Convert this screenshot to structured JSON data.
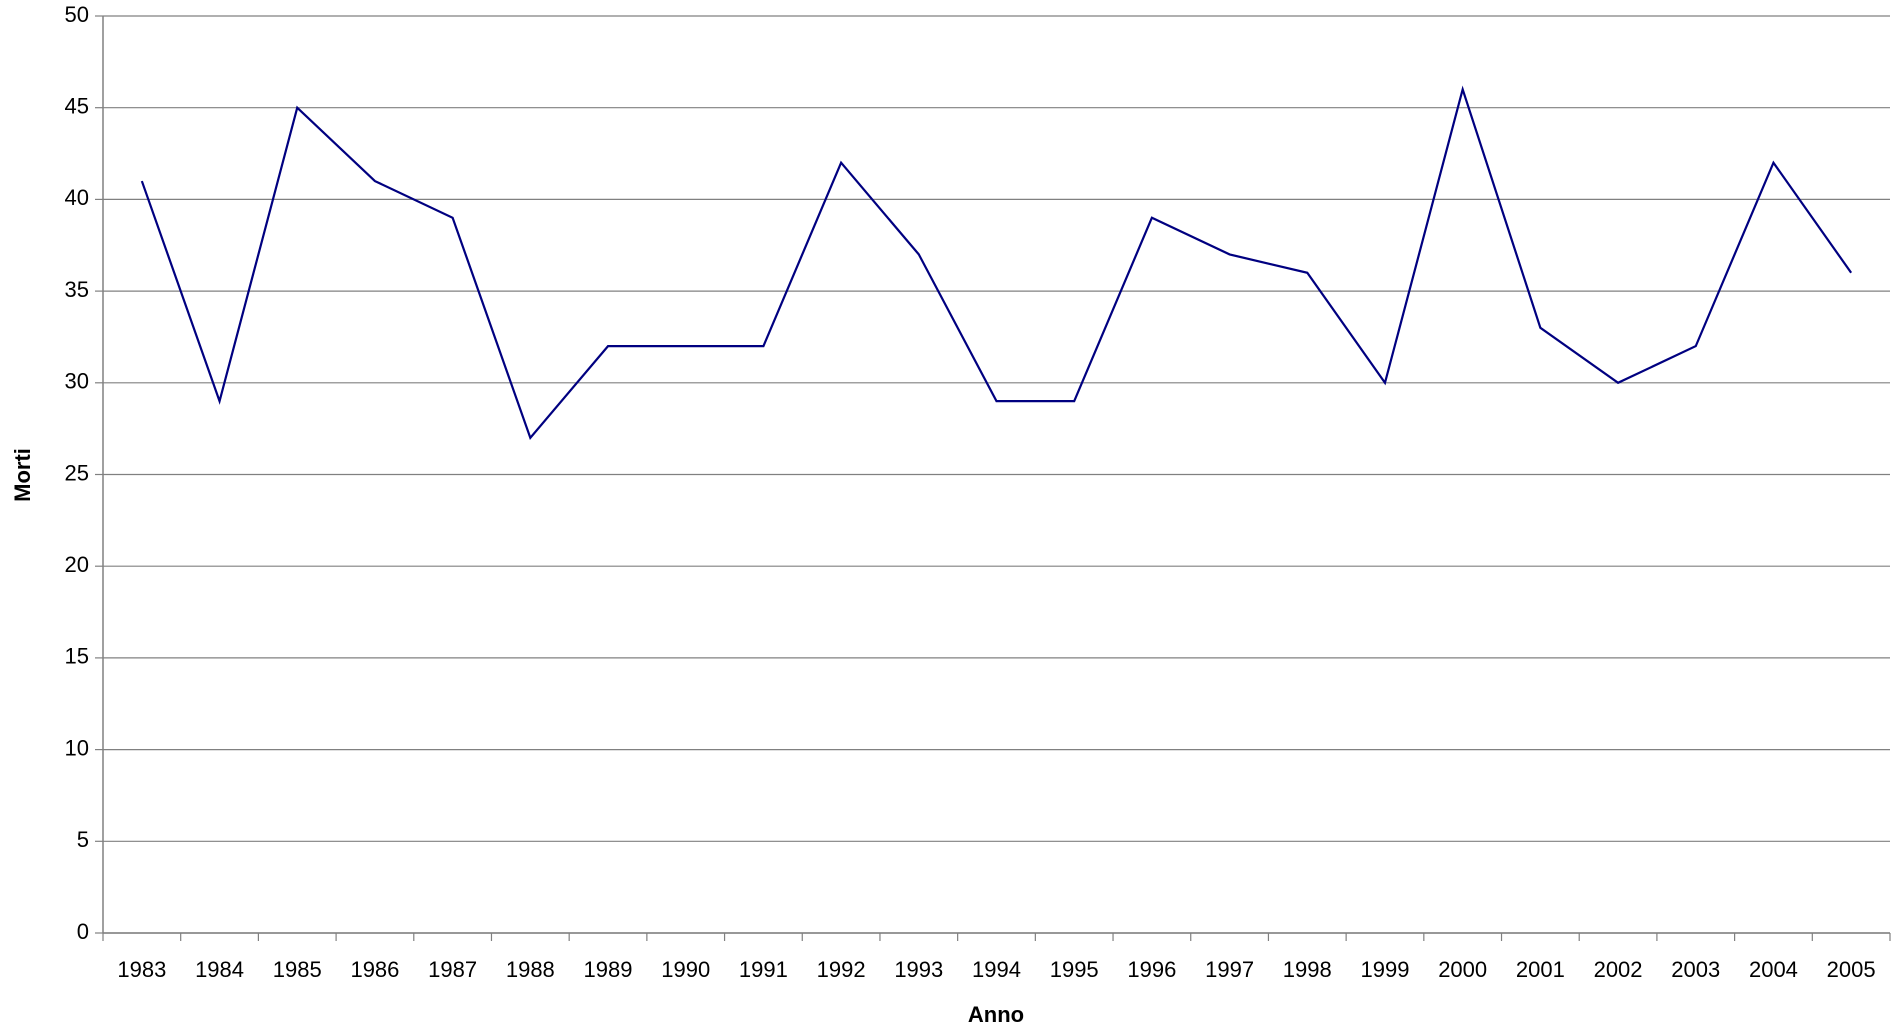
{
  "chart_data": {
    "type": "line",
    "x_label": "Anno",
    "y_label": "Morti",
    "categories": [
      "1983",
      "1984",
      "1985",
      "1986",
      "1987",
      "1988",
      "1989",
      "1990",
      "1991",
      "1992",
      "1993",
      "1994",
      "1995",
      "1996",
      "1997",
      "1998",
      "1999",
      "2000",
      "2001",
      "2002",
      "2003",
      "2004",
      "2005"
    ],
    "values": [
      41,
      29,
      45,
      41,
      39,
      27,
      32,
      32,
      32,
      42,
      37,
      29,
      29,
      39,
      37,
      36,
      30,
      46,
      33,
      30,
      32,
      42,
      36
    ],
    "color": "#000080",
    "ylim": [
      0,
      50
    ],
    "yticks": [
      0,
      5,
      10,
      15,
      20,
      25,
      30,
      35,
      40,
      45,
      50
    ],
    "grid": true
  }
}
